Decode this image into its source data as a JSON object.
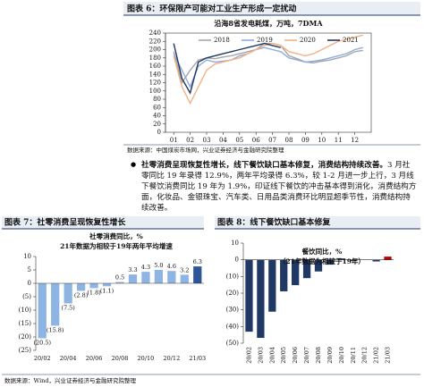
{
  "page": {
    "fig6_title": "图表 6：环保限产可能对工业生产形成一定扰动",
    "source_1": "数据来源：中国煤炭市场网，兴业证券经济与金融研究院整理",
    "bullet_heading": "社零消费呈现恢复性增长，线下餐饮缺口基本修复，消费结构持续改善。",
    "bullet_text": "3 月社零同比 19 年录得 12.9%，两年平均录得 6.3%，较 1-2 月进一步上行，3 月线下餐饮消费同比 19 年为 1.9%，印证线下餐饮的冲击基本得到消化，消费结构方面，化妆品、金银珠宝、汽车类、日用品类消费环比明显超季节性，消费结构持续改善。",
    "fig7_title": "图表 7：社零消费呈现恢复性增长",
    "fig8_title": "图表 8：线下餐饮缺口基本修复",
    "source_2": "数据来源：Wind，兴业证券经济与金融研究院整理"
  },
  "chart_data": [
    {
      "type": "line",
      "title": "沿海8省发电耗煤，万吨，7DMA",
      "x": [
        1,
        1.5,
        2,
        2.5,
        3,
        3.5,
        4,
        4.5,
        5,
        5.5,
        6,
        6.5,
        7,
        7.5,
        8,
        8.5,
        9,
        9.5,
        10,
        10.5,
        11,
        11.5,
        12,
        12.5
      ],
      "series": [
        {
          "name": "2018",
          "color": "#a6a6a6",
          "values": [
            195,
            120,
            150,
            175,
            180,
            178,
            182,
            185,
            190,
            195,
            200,
            215,
            215,
            210,
            185,
            178,
            170,
            168,
            172,
            175,
            180,
            185,
            195,
            198
          ]
        },
        {
          "name": "2019",
          "color": "#8faadc",
          "values": [
            190,
            150,
            110,
            160,
            175,
            170,
            172,
            175,
            185,
            190,
            200,
            205,
            200,
            195,
            180,
            175,
            170,
            172,
            175,
            180,
            185,
            190,
            200,
            205
          ]
        },
        {
          "name": "2020",
          "color": "#f4b183",
          "values": [
            185,
            110,
            70,
            110,
            150,
            165,
            170,
            175,
            180,
            190,
            200,
            210,
            215,
            210,
            195,
            190,
            185,
            190,
            200,
            210,
            220,
            225,
            230,
            235
          ]
        },
        {
          "name": "2021",
          "color": "#1f3864",
          "values": [
            215,
            130,
            95,
            170,
            180,
            185,
            190,
            195,
            200,
            205,
            210,
            215,
            210,
            205,
            null,
            null,
            null,
            null,
            null,
            null,
            null,
            null,
            null,
            null
          ]
        }
      ],
      "xlim": [
        0.5,
        13
      ],
      "xticks": [
        {
          "value": 1,
          "label": "01"
        },
        {
          "value": 2,
          "label": "02"
        },
        {
          "value": 3,
          "label": "03"
        },
        {
          "value": 4,
          "label": "04"
        },
        {
          "value": 5,
          "label": "05"
        },
        {
          "value": 6,
          "label": "06"
        },
        {
          "value": 7,
          "label": "07"
        },
        {
          "value": 8,
          "label": "08"
        },
        {
          "value": 9,
          "label": "09"
        },
        {
          "value": 10,
          "label": "10"
        },
        {
          "value": 11,
          "label": "11"
        },
        {
          "value": 12,
          "label": "12"
        }
      ],
      "ylim": [
        0,
        240
      ],
      "yticks": [
        0,
        20,
        40,
        60,
        80,
        100,
        120,
        140,
        160,
        180,
        200,
        220,
        240
      ],
      "legend": "top"
    },
    {
      "type": "bar",
      "title": "社零消费同比，%",
      "subtitle": "21年数据为相较于19年两年平均增速",
      "categories": [
        "20/02",
        null,
        "20/04",
        null,
        "20/06",
        null,
        "20/08",
        null,
        "20/10",
        null,
        "20/12",
        null,
        "21/03"
      ],
      "values": [
        -20.5,
        -15.8,
        -7.5,
        -2.8,
        -1.8,
        -1.1,
        0.5,
        3.3,
        4.3,
        5.0,
        4.6,
        3.2,
        6.3
      ],
      "value_labels": [
        "(20.5)",
        "(15.8)",
        "(7.5)",
        "(2.8)",
        "(1.8)",
        "(1.1)",
        "0.5",
        "3.3",
        "4.3",
        "5.0",
        "4.6",
        "3.2",
        "6.3"
      ],
      "colors": [
        "#8eb4e3",
        "#8eb4e3",
        "#8eb4e3",
        "#8eb4e3",
        "#8eb4e3",
        "#8eb4e3",
        "#8eb4e3",
        "#8eb4e3",
        "#8eb4e3",
        "#8eb4e3",
        "#8eb4e3",
        "#8eb4e3",
        "#2e5597"
      ],
      "ylim": [
        -25,
        10
      ],
      "yticks": [
        {
          "value": -25,
          "label": "(25)"
        },
        {
          "value": -20,
          "label": "(20)"
        },
        {
          "value": -15,
          "label": "(15)"
        },
        {
          "value": -10,
          "label": "(10)"
        },
        {
          "value": -5,
          "label": "(5)"
        },
        0,
        5,
        10
      ]
    },
    {
      "type": "bar",
      "title": "餐饮同比，%",
      "subtitle": "（21年数据为相较于19年）",
      "categories": [
        "20/02",
        "20/03",
        "20/04",
        "20/05",
        "20/06",
        "20/07",
        "20/08",
        "20/09",
        "20/10",
        "20/11",
        "20/12",
        "21/02",
        "21/03"
      ],
      "values": [
        -43.1,
        -46.8,
        -31.1,
        -18.9,
        -15.2,
        -11.0,
        -7.0,
        -2.9,
        0.8,
        -0.6,
        -0.1,
        -1.0,
        1.9
      ],
      "colors": [
        "#1f3864",
        "#1f3864",
        "#1f3864",
        "#1f3864",
        "#1f3864",
        "#1f3864",
        "#1f3864",
        "#1f3864",
        "#1f3864",
        "#1f3864",
        "#1f3864",
        "#1f3864",
        "#c00000"
      ],
      "ylim": [
        -50,
        10
      ],
      "yticks": [
        {
          "value": -50,
          "label": "(50)"
        },
        {
          "value": -40,
          "label": "(40)"
        },
        {
          "value": -30,
          "label": "(30)"
        },
        {
          "value": -20,
          "label": "(20)"
        },
        {
          "value": -10,
          "label": "(10)"
        },
        0,
        10
      ]
    }
  ]
}
